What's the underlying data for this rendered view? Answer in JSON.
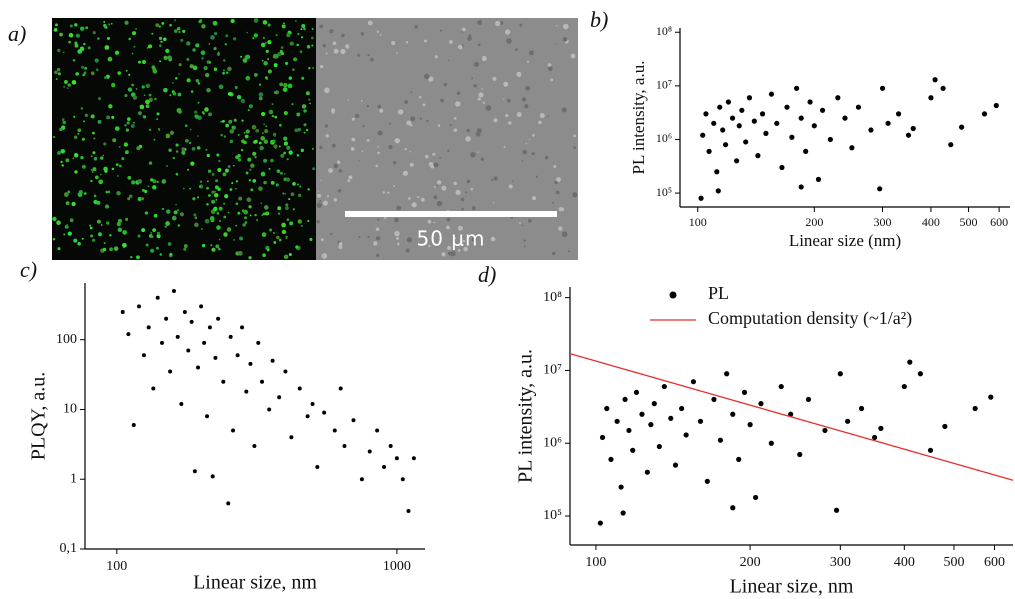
{
  "image_panel": {
    "panel_label": "a)",
    "scale_bar": "50 μm"
  },
  "chart_data": [
    {
      "type": "scatter",
      "panel_label": "b)",
      "x_label": "Linear size (nm)",
      "y_label": "PL intensity, a.u.",
      "xscale": "log",
      "yscale": "log",
      "xlim": [
        90,
        640
      ],
      "ylim": [
        55000,
        120000000
      ],
      "xticks": [
        100,
        200,
        300,
        400,
        500,
        600
      ],
      "yticks": [
        {
          "value": 100000,
          "label": "10⁵"
        },
        {
          "value": 1000000,
          "label": "10⁶"
        },
        {
          "value": 10000000,
          "label": "10⁷"
        },
        {
          "value": 100000000,
          "label": "10⁸"
        }
      ],
      "series": [
        {
          "color": "#000000",
          "x": [
            102,
            103,
            105,
            107,
            110,
            112,
            114,
            116,
            118,
            120,
            123,
            126,
            128,
            130,
            133,
            136,
            140,
            143,
            147,
            150,
            155,
            160,
            165,
            170,
            175,
            180,
            185,
            190,
            195,
            200,
            205,
            210,
            220,
            230,
            240,
            250,
            260,
            280,
            295,
            300,
            310,
            330,
            350,
            360,
            400,
            410,
            430,
            450,
            480,
            550,
            590,
            113,
            185
          ],
          "values": [
            80000,
            1200000,
            3000000,
            600000,
            2000000,
            250000,
            4000000,
            1500000,
            800000,
            5000000,
            2500000,
            400000,
            1800000,
            3500000,
            900000,
            6000000,
            2200000,
            500000,
            3000000,
            1300000,
            7000000,
            2000000,
            300000,
            4000000,
            1100000,
            9000000,
            2500000,
            600000,
            5000000,
            1800000,
            180000,
            3500000,
            1000000,
            6000000,
            2500000,
            700000,
            4000000,
            1500000,
            120000,
            9000000,
            2000000,
            3000000,
            1200000,
            1600000,
            6000000,
            13000000,
            9000000,
            800000,
            1700000,
            3000000,
            4300000,
            110000,
            130000
          ]
        }
      ]
    },
    {
      "type": "scatter",
      "panel_label": "c)",
      "x_label": "Linear size, nm",
      "y_label": "PLQY, a.u.",
      "xscale": "log",
      "yscale": "log",
      "xlim": [
        77,
        1260
      ],
      "ylim": [
        0.1,
        650
      ],
      "xticks": [
        100,
        1000
      ],
      "yticks": [
        {
          "value": 0.1,
          "label": "0,1"
        },
        1,
        10,
        100
      ],
      "series": [
        {
          "color": "#000000",
          "x": [
            105,
            110,
            115,
            120,
            125,
            130,
            135,
            140,
            145,
            150,
            155,
            160,
            165,
            170,
            175,
            180,
            185,
            190,
            195,
            200,
            205,
            210,
            215,
            220,
            225,
            230,
            240,
            250,
            255,
            260,
            270,
            280,
            290,
            300,
            310,
            320,
            330,
            350,
            360,
            380,
            400,
            420,
            450,
            480,
            500,
            520,
            550,
            600,
            630,
            650,
            700,
            750,
            800,
            850,
            900,
            950,
            1000,
            1050,
            1100,
            1150
          ],
          "values": [
            250,
            120,
            6,
            300,
            60,
            150,
            20,
            400,
            90,
            200,
            35,
            500,
            110,
            12,
            250,
            70,
            180,
            1.3,
            40,
            300,
            90,
            8,
            150,
            1.1,
            55,
            200,
            25,
            0.45,
            110,
            5,
            60,
            150,
            18,
            45,
            3,
            90,
            25,
            10,
            50,
            15,
            35,
            4,
            20,
            8,
            12,
            1.5,
            9,
            5,
            20,
            3,
            7,
            1,
            2.5,
            5,
            1.5,
            3,
            2,
            1,
            0.35,
            2
          ]
        }
      ]
    },
    {
      "type": "scatter",
      "panel_label": "d)",
      "x_label": "Linear size, nm",
      "y_label": "PL intensity, a.u.",
      "xscale": "log",
      "yscale": "log",
      "xlim": [
        89,
        652
      ],
      "ylim": [
        40000,
        140000000
      ],
      "xticks": [
        100,
        200,
        300,
        400,
        500,
        600
      ],
      "yticks": [
        {
          "value": 100000,
          "label": "10⁵"
        },
        {
          "value": 1000000,
          "label": "10⁶"
        },
        {
          "value": 10000000,
          "label": "10⁷"
        },
        {
          "value": 100000000,
          "label": "10⁸"
        }
      ],
      "series": [
        {
          "name": "PL",
          "color": "#000000",
          "x": [
            102,
            103,
            105,
            107,
            110,
            112,
            114,
            116,
            118,
            120,
            123,
            126,
            128,
            130,
            133,
            136,
            140,
            143,
            147,
            150,
            155,
            160,
            165,
            170,
            175,
            180,
            185,
            190,
            195,
            200,
            205,
            210,
            220,
            230,
            240,
            250,
            260,
            280,
            295,
            300,
            310,
            330,
            350,
            360,
            400,
            410,
            430,
            450,
            480,
            550,
            590,
            113,
            185
          ],
          "values": [
            80000,
            1200000,
            3000000,
            600000,
            2000000,
            250000,
            4000000,
            1500000,
            800000,
            5000000,
            2500000,
            400000,
            1800000,
            3500000,
            900000,
            6000000,
            2200000,
            500000,
            3000000,
            1300000,
            7000000,
            2000000,
            300000,
            4000000,
            1100000,
            9000000,
            2500000,
            600000,
            5000000,
            1800000,
            180000,
            3500000,
            1000000,
            6000000,
            2500000,
            700000,
            4000000,
            1500000,
            120000,
            9000000,
            2000000,
            3000000,
            1200000,
            1600000,
            6000000,
            13000000,
            9000000,
            800000,
            1700000,
            3000000,
            4300000,
            110000,
            130000
          ]
        },
        {
          "name": "Computation density (~1/a²)",
          "color": "#e8302a",
          "type": "line",
          "x": [
            89,
            652
          ],
          "values": [
            17000000,
            310000
          ]
        }
      ],
      "legend": "top-right"
    }
  ]
}
